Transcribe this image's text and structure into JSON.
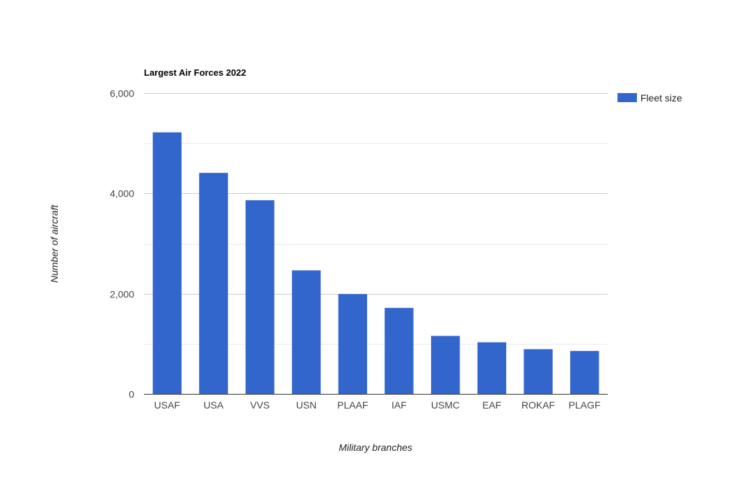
{
  "chart_data": {
    "type": "bar",
    "title": "Largest Air Forces 2022",
    "xlabel": "Military branches",
    "ylabel": "Number of aircraft",
    "categories": [
      "USAF",
      "USA",
      "VVS",
      "USN",
      "PLAAF",
      "IAF",
      "USMC",
      "EAF",
      "ROKAF",
      "PLAGF"
    ],
    "series": [
      {
        "name": "Fleet size",
        "color": "#3366cc",
        "values": [
          5217,
          4409,
          3863,
          2464,
          1991,
          1715,
          1157,
          1030,
          893,
          857
        ]
      }
    ],
    "ylim": [
      0,
      6000
    ],
    "y_ticks": [
      0,
      2000,
      4000,
      6000
    ],
    "y_tick_labels": [
      "0",
      "2,000",
      "4,000",
      "6,000"
    ],
    "grid": true,
    "legend_position": "right"
  }
}
